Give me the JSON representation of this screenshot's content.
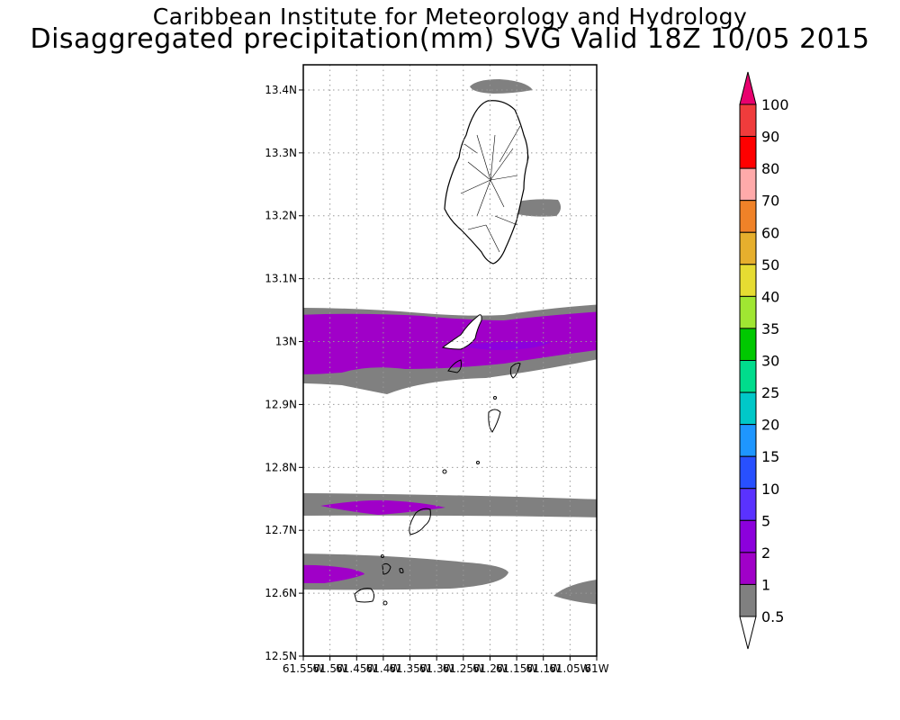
{
  "header": {
    "line1": "Caribbean Institute for Meteorology and Hydrology",
    "line2": "Disaggregated precipitation(mm) SVG Valid 18Z 10/05 2015"
  },
  "map": {
    "region": "St. Vincent and the Grenadines",
    "lat_range": [
      12.5,
      13.44
    ],
    "lon_range": [
      -61.55,
      -61.0
    ],
    "y_ticks": [
      "13.4N",
      "13.3N",
      "13.2N",
      "13.1N",
      "13N",
      "12.9N",
      "12.8N",
      "12.7N",
      "12.6N",
      "12.5N"
    ],
    "x_ticks": [
      "61.55W",
      "61.5W",
      "61.45W",
      "61.4W",
      "61.35W",
      "61.3W",
      "61.25W",
      "61.2W",
      "61.15W",
      "61.1W",
      "61.05W",
      "61W"
    ],
    "grid": true
  },
  "colorbar": {
    "labels": [
      "100",
      "90",
      "80",
      "70",
      "60",
      "50",
      "40",
      "35",
      "30",
      "25",
      "20",
      "15",
      "10",
      "5",
      "2",
      "1",
      "0.5"
    ],
    "colors": [
      "#e8006e",
      "#f03c3c",
      "#ff0000",
      "#ffaaaa",
      "#f08228",
      "#e6af2d",
      "#e6dc32",
      "#a0e632",
      "#00c800",
      "#00dc8c",
      "#00c8c8",
      "#1e96ff",
      "#2850ff",
      "#5a32ff",
      "#8c00dc",
      "#a000c8",
      "#808080",
      "#ffffff"
    ],
    "bins": [
      ">100",
      "90-100",
      "80-90",
      "70-80",
      "60-70",
      "50-60",
      "40-50",
      "35-40",
      "30-35",
      "25-30",
      "20-25",
      "15-20",
      "10-15",
      "5-10",
      "2-5",
      "1-2",
      "0.5-1",
      "<0.5"
    ]
  }
}
